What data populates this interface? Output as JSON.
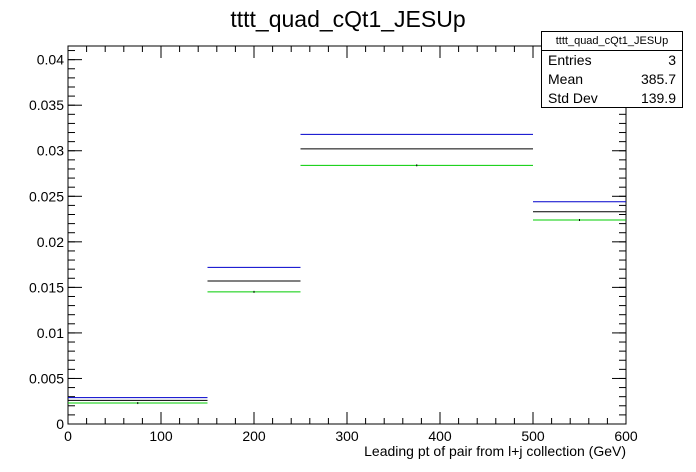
{
  "chart_data": {
    "type": "histogram-step",
    "title": "tttt_quad_cQt1_JESUp",
    "xlabel": "Leading pt of pair from l+j collection (GeV)",
    "ylabel": "",
    "xlim": [
      0,
      600
    ],
    "ylim": [
      0,
      0.0415
    ],
    "x_ticks": [
      0,
      100,
      200,
      300,
      400,
      500,
      600
    ],
    "y_ticks": [
      0,
      0.005,
      0.01,
      0.015,
      0.02,
      0.025,
      0.03,
      0.035,
      0.04
    ],
    "x_tick_labels": [
      "0",
      "100",
      "200",
      "300",
      "400",
      "500",
      "600"
    ],
    "y_tick_labels": [
      "0",
      "0.005",
      "0.01",
      "0.015",
      "0.02",
      "0.025",
      "0.03",
      "0.035",
      "0.04"
    ],
    "bin_edges": [
      0,
      150,
      250,
      500,
      600
    ],
    "series": [
      {
        "color": "#0000cc",
        "values": [
          0.0029,
          0.0172,
          0.0318,
          0.0244
        ]
      },
      {
        "color": "#000000",
        "values": [
          0.0026,
          0.0157,
          0.0302,
          0.0233
        ]
      },
      {
        "color": "#00cc00",
        "values": [
          0.0023,
          0.0145,
          0.0284,
          0.0224
        ]
      }
    ],
    "stats": {
      "name": "tttt_quad_cQt1_JESUp",
      "entries_label": "Entries",
      "entries": "3",
      "mean_label": "Mean",
      "mean": "385.7",
      "stddev_label": "Std Dev",
      "stddev": "139.9"
    }
  }
}
